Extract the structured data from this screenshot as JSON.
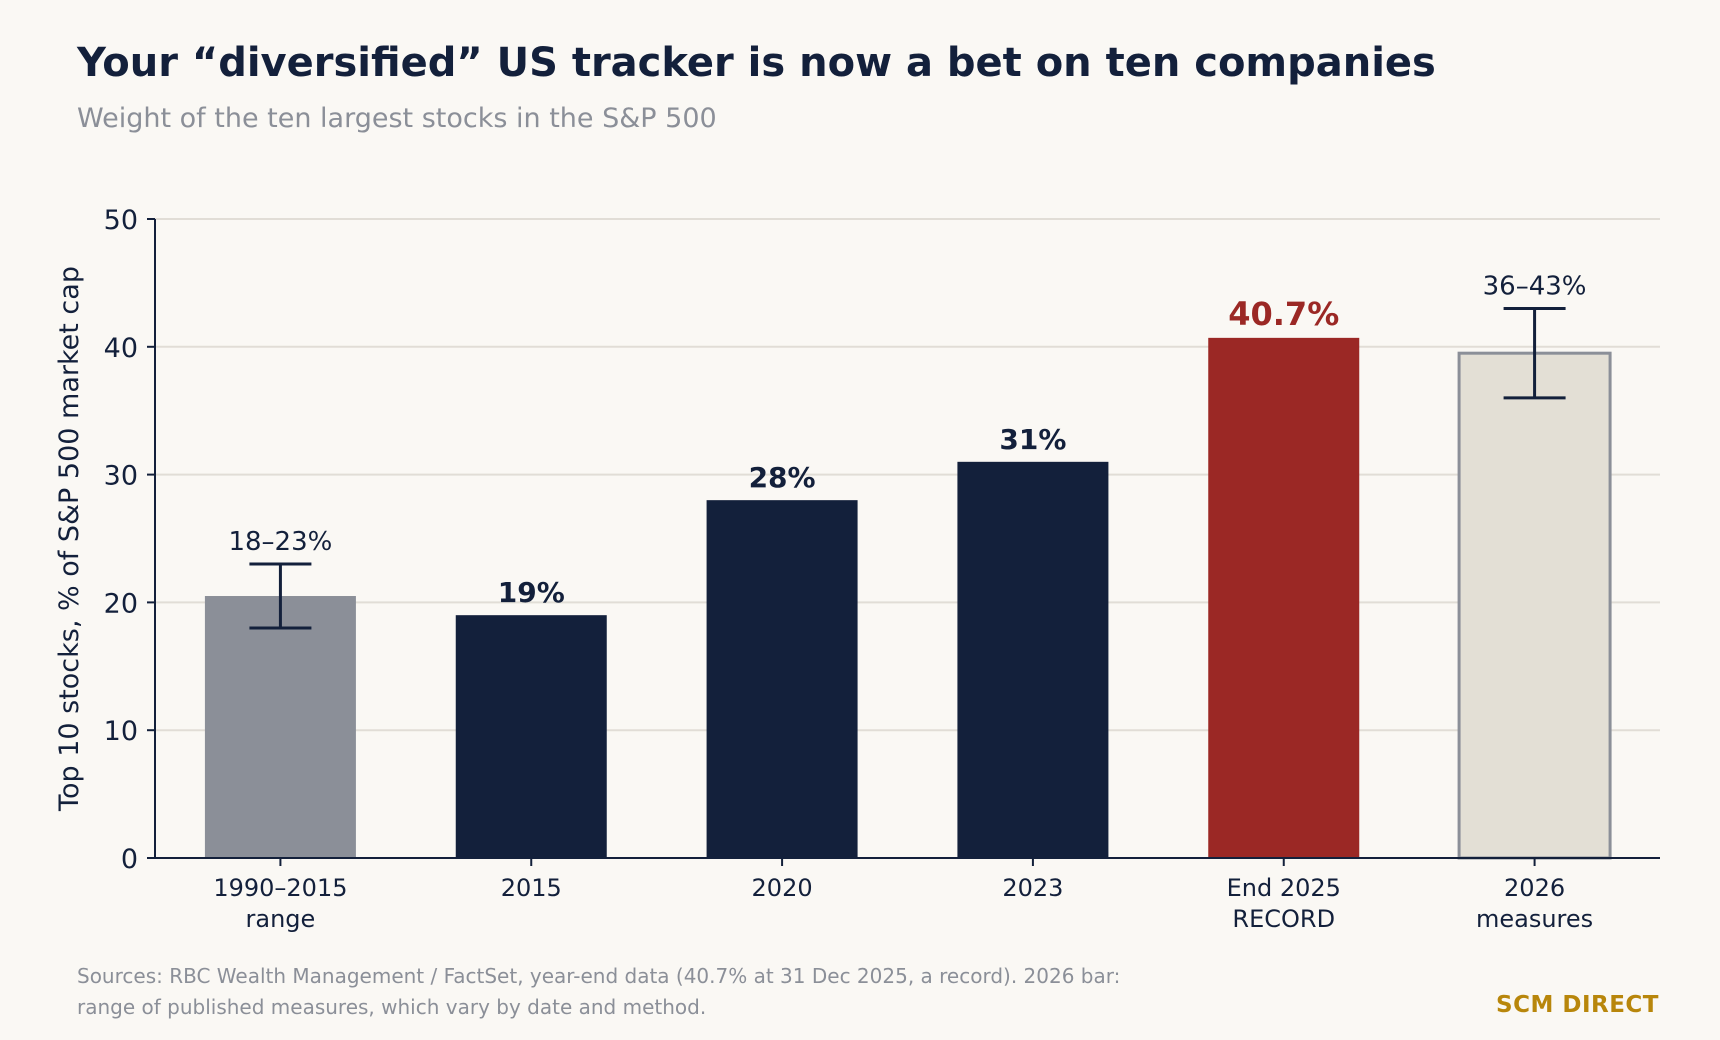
{
  "title": "Your “diversified” US tracker is now a bet on ten companies",
  "subtitle": "Weight of the ten largest stocks in the S&P 500",
  "source_note": "Sources: RBC Wealth Management / FactSet, year-end data (40.7% at 31 Dec 2025, a record). 2026 bar: range of published measures, which vary by date and method.",
  "brand": "SCM DIRECT",
  "chart_data": {
    "type": "bar",
    "ylabel": "Top 10 stocks, % of S&P 500 market cap",
    "ylim": [
      0,
      50
    ],
    "yticks": [
      0,
      10,
      20,
      30,
      40,
      50
    ],
    "grid": true,
    "categories": [
      [
        "1990–2015",
        "range"
      ],
      [
        "2015"
      ],
      [
        "2020"
      ],
      [
        "2023"
      ],
      [
        "End 2025",
        "RECORD"
      ],
      [
        "2026",
        "measures"
      ]
    ],
    "values": [
      20.5,
      19,
      28,
      31,
      40.7,
      39.5
    ],
    "error_ranges": [
      [
        18,
        23
      ],
      null,
      null,
      null,
      null,
      [
        36,
        43
      ]
    ],
    "data_labels": [
      "18–23%",
      "19%",
      "28%",
      "31%",
      "40.7%",
      "36–43%"
    ],
    "colors": {
      "range_bar": "#8b8f98",
      "history_bar": "#13203b",
      "record_bar": "#9b2825",
      "estimate_bar": "#e3dfd5",
      "estimate_outline": "#8b8f98",
      "error_bar": "#13203b",
      "axis": "#13203b",
      "grid": "#e1ddd6"
    },
    "bar_styles": [
      "range",
      "history",
      "history",
      "history",
      "record",
      "estimate"
    ]
  }
}
